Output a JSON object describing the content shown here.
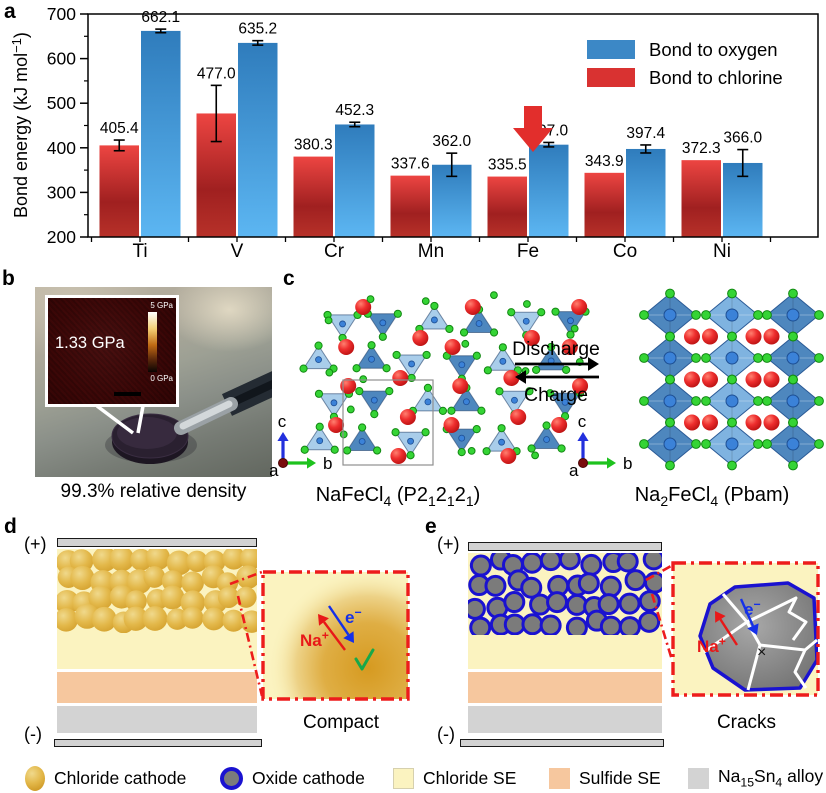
{
  "panel_labels": {
    "a": "a",
    "b": "b",
    "c": "c",
    "d": "d",
    "e": "e"
  },
  "chart_data": {
    "type": "bar",
    "title": "",
    "ylabel": "Bond energy (kJ mol^−1^)",
    "ylim": [
      200,
      700
    ],
    "ytick_step": 100,
    "yminor_step": 50,
    "grid": false,
    "legend_position": "top-right-inside",
    "categories": [
      "Ti",
      "V",
      "Cr",
      "Mn",
      "Fe",
      "Co",
      "Ni"
    ],
    "series": [
      {
        "name": "Bond to chlorine",
        "role": "chlorine",
        "values": [
          405.4,
          477.0,
          380.3,
          337.6,
          335.5,
          343.9,
          372.3
        ],
        "errors": [
          12,
          63,
          0,
          0,
          0,
          0,
          0
        ],
        "color_top": "#ed4542",
        "color_mid": "#a02020",
        "color_bottom": "#b73129",
        "legend_color": "#d93231"
      },
      {
        "name": "Bond to oxygen",
        "role": "oxygen",
        "values": [
          662.1,
          635.2,
          452.3,
          362.0,
          407.0,
          397.4,
          366.0
        ],
        "errors": [
          4,
          5,
          5,
          26,
          5,
          9,
          30
        ],
        "color_top": "#2f7cbc",
        "color_mid": "",
        "color_bottom": "#5cb6f2",
        "legend_color": "#3c88c6"
      }
    ],
    "legend_order": [
      "Bond to oxygen",
      "Bond to chlorine"
    ],
    "annotation": {
      "shape": "down-arrow",
      "category": "Fe",
      "color": "#e22e2c"
    }
  },
  "panel_b": {
    "pressure": "1.33 GPa",
    "cbar_max": "5 GPa",
    "cbar_min": "0 GPa",
    "caption": "99.3% relative density"
  },
  "panel_c": {
    "discharge": "Discharge",
    "charge": "Charge",
    "axes": {
      "a": "a",
      "b": "b",
      "c": "c"
    },
    "left_formula": "NaFeCl~4~ (P2~1~2~1~2~1~)",
    "right_formula": "Na~2~FeCl~4~ (Pbam)"
  },
  "panel_d": {
    "plus": "(+)",
    "minus": "(-)",
    "ion": "Na^+^",
    "electron": "e^−^",
    "check": "✓",
    "caption": "Compact"
  },
  "panel_e": {
    "plus": "(+)",
    "minus": "(-)",
    "ion": "Na^+^",
    "electron": "e^−^",
    "cross": "×",
    "caption": "Cracks"
  },
  "legend": {
    "items": [
      {
        "swatch": "chloride-cathode",
        "label": "Chloride cathode"
      },
      {
        "swatch": "oxide-cathode",
        "label": "Oxide cathode"
      },
      {
        "swatch": "chloride-se",
        "label": "Chloride SE"
      },
      {
        "swatch": "sulfide-se",
        "label": "Sulfide SE"
      },
      {
        "swatch": "alloy",
        "label": "Na~15~Sn~4~ alloy"
      }
    ]
  },
  "colors": {
    "chloride_se": "#fbf3c0",
    "sulfide_se": "#f6c79e",
    "alloy": "#d3d3d3",
    "electrode": "#d2d2d2",
    "gold_hi": "#f0d98c",
    "gold_mid": "#e3b84a",
    "gold_core": "#cf9a26",
    "oxide_fill": "#7b7b7b",
    "oxide_ring": "#1a12d0",
    "na_red": "#e01818",
    "cl_green": "#35d435",
    "poly_light": "#a9cdea",
    "poly_dark": "#4e87be",
    "fe_blue": "#3b82d8",
    "inset_border": "#ed1c1c",
    "check_green": "#18a84a",
    "electron_blue": "#1530e8",
    "ion_red": "#e81818"
  }
}
